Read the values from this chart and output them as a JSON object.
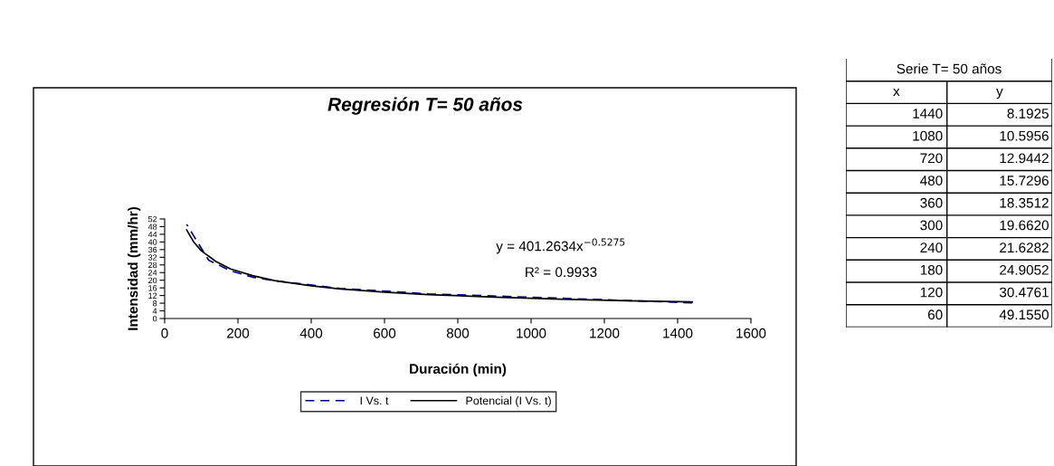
{
  "chart_data": [
    {
      "type": "line",
      "title": "Regresión T= 50 años",
      "xlabel": "Duración (min)",
      "ylabel": "Intensidad (mm/hr)",
      "xlim": [
        0,
        1600
      ],
      "xticks": [
        0,
        200,
        400,
        600,
        800,
        1000,
        1200,
        1400,
        1600
      ],
      "ylim": [
        0,
        52
      ],
      "yticks": [
        0,
        4,
        8,
        12,
        16,
        20,
        24,
        28,
        32,
        36,
        40,
        44,
        48,
        52
      ],
      "grid": false,
      "legend": "bottom",
      "marker": "none",
      "annotations": [
        "y = 401.2634x$^{−0.5275}$",
        "R² = 0.9933"
      ],
      "series": [
        {
          "name": "I Vs. t",
          "color": "#000080",
          "line_style": "dashed",
          "x": [
            1440,
            1080,
            720,
            480,
            360,
            300,
            240,
            180,
            120,
            60
          ],
          "values": [
            8.2,
            10.6,
            12.9,
            15.7,
            18.4,
            19.7,
            21.6,
            24.9,
            30.5,
            49.2
          ]
        },
        {
          "name": "Potencial (I Vs. t)",
          "color": "#000000",
          "line_style": "solid",
          "x": [
            60,
            80,
            100,
            140,
            180,
            240,
            300,
            400,
            480,
            600,
            720,
            900,
            1080,
            1260,
            1440
          ],
          "values": [
            46.3,
            39.8,
            35.4,
            29.8,
            25.9,
            22.4,
            19.8,
            17.1,
            15.4,
            13.8,
            12.5,
            11.2,
            10.1,
            9.3,
            8.7
          ]
        }
      ]
    },
    {
      "type": "other",
      "title": "Serie T= 50 años",
      "annotations": [
        "x",
        "y",
        "1440",
        "8.1925",
        "1080",
        "10.5956",
        "720",
        "12.9442",
        "480",
        "15.7296",
        "360",
        "18.3512",
        "300",
        "19.6620",
        "240",
        "21.6282",
        "180",
        "24.9052",
        "120",
        "30.4761",
        "60",
        "49.1550"
      ]
    }
  ]
}
